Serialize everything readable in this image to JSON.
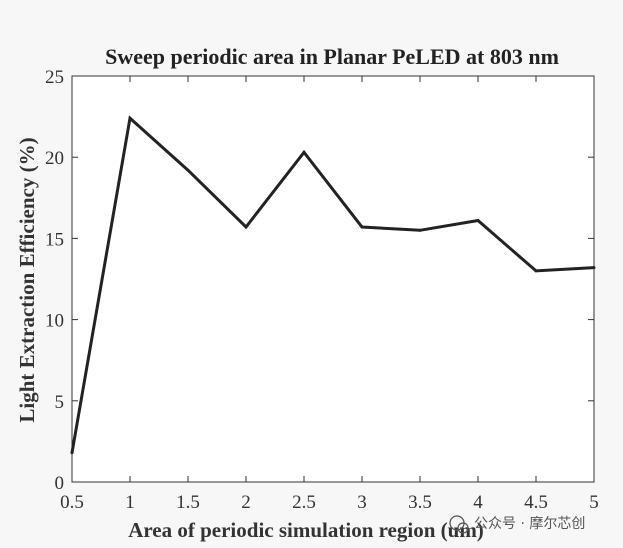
{
  "chart_data": {
    "type": "line",
    "title": "Sweep periodic area in Planar PeLED at 803 nm",
    "xlabel": "Area of periodic simulation region (um)",
    "ylabel": "Light Extraction Efficiency (%)",
    "xlim": [
      0.5,
      5
    ],
    "ylim": [
      0,
      25
    ],
    "x_ticks": [
      "0.5",
      "1",
      "1.5",
      "2",
      "2.5",
      "3",
      "3.5",
      "4",
      "4.5",
      "5"
    ],
    "y_ticks": [
      "0",
      "5",
      "10",
      "15",
      "20",
      "25"
    ],
    "grid": false,
    "series": [
      {
        "x": [
          0.5,
          1,
          1.5,
          2,
          2.5,
          3,
          3.5,
          4,
          4.5,
          5
        ],
        "y": [
          1.8,
          22.4,
          19.2,
          15.7,
          20.3,
          15.7,
          15.5,
          16.1,
          13.0,
          13.2
        ],
        "color": "#222222"
      }
    ]
  },
  "watermark": {
    "text": "公众号 · 摩尔芯创"
  }
}
